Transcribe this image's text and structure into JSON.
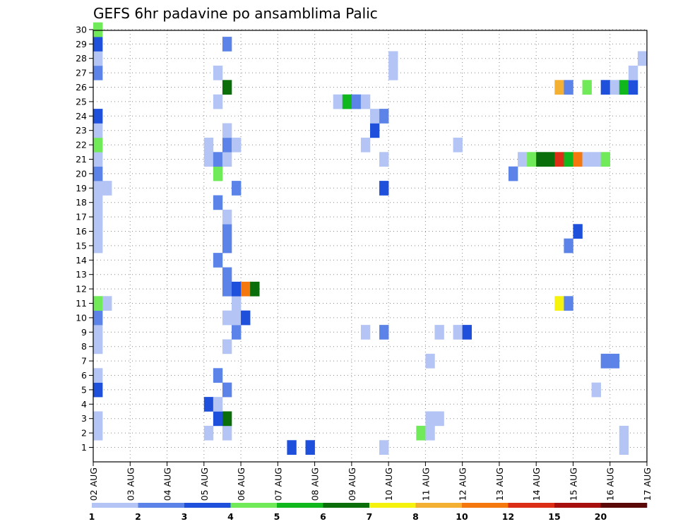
{
  "chart_data": {
    "type": "heatmap",
    "title": "GEFS 6hr padavine po ansamblima Palic",
    "xlabel": "",
    "ylabel": "",
    "x_ticks": [
      "02 AUG",
      "03 AUG",
      "04 AUG",
      "05 AUG",
      "06 AUG",
      "07 AUG",
      "08 AUG",
      "09 AUG",
      "10 AUG",
      "11 AUG",
      "12 AUG",
      "13 AUG",
      "14 AUG",
      "15 AUG",
      "16 AUG",
      "17 AUG"
    ],
    "x_range_days": [
      0,
      15
    ],
    "x_step_hours": 6,
    "y_members": [
      1,
      2,
      3,
      4,
      5,
      6,
      7,
      8,
      9,
      10,
      11,
      12,
      13,
      14,
      15,
      16,
      17,
      18,
      19,
      20,
      21,
      22,
      23,
      24,
      25,
      26,
      27,
      28,
      29,
      30
    ],
    "grid": "dotted",
    "legend": {
      "position": "bottom",
      "bounds": [
        1,
        2,
        3,
        4,
        5,
        6,
        7,
        8,
        10,
        12,
        15,
        20
      ],
      "colors": [
        "#b4c5f5",
        "#5c84e8",
        "#1e50dc",
        "#70ea58",
        "#10b81e",
        "#0a6e0a",
        "#f5f20e",
        "#f4b033",
        "#f4780e",
        "#dc2e16",
        "#a81010",
        "#5a0808"
      ]
    },
    "cells": [
      {
        "member": 1,
        "day": 5.25,
        "level": 3
      },
      {
        "member": 1,
        "day": 5.75,
        "level": 3
      },
      {
        "member": 1,
        "day": 7.75,
        "level": 1
      },
      {
        "member": 1,
        "day": 14.25,
        "level": 1
      },
      {
        "member": 2,
        "day": 0.0,
        "level": 1
      },
      {
        "member": 2,
        "day": 3.0,
        "level": 1
      },
      {
        "member": 2,
        "day": 3.5,
        "level": 1
      },
      {
        "member": 2,
        "day": 8.75,
        "level": 4
      },
      {
        "member": 2,
        "day": 9.0,
        "level": 1
      },
      {
        "member": 2,
        "day": 14.25,
        "level": 1
      },
      {
        "member": 3,
        "day": 0.0,
        "level": 1
      },
      {
        "member": 3,
        "day": 3.25,
        "level": 3
      },
      {
        "member": 3,
        "day": 3.5,
        "level": 6
      },
      {
        "member": 3,
        "day": 9.0,
        "level": 1
      },
      {
        "member": 3,
        "day": 9.25,
        "level": 1
      },
      {
        "member": 4,
        "day": 3.0,
        "level": 3
      },
      {
        "member": 4,
        "day": 3.25,
        "level": 1
      },
      {
        "member": 5,
        "day": 0.0,
        "level": 3
      },
      {
        "member": 5,
        "day": 3.5,
        "level": 2
      },
      {
        "member": 5,
        "day": 13.5,
        "level": 1
      },
      {
        "member": 6,
        "day": 0.0,
        "level": 1
      },
      {
        "member": 6,
        "day": 3.25,
        "level": 2
      },
      {
        "member": 7,
        "day": 9.0,
        "level": 1
      },
      {
        "member": 7,
        "day": 13.75,
        "level": 2
      },
      {
        "member": 7,
        "day": 14.0,
        "level": 2
      },
      {
        "member": 8,
        "day": 0.0,
        "level": 1
      },
      {
        "member": 8,
        "day": 3.5,
        "level": 1
      },
      {
        "member": 9,
        "day": 0.0,
        "level": 1
      },
      {
        "member": 9,
        "day": 3.75,
        "level": 2
      },
      {
        "member": 9,
        "day": 7.25,
        "level": 1
      },
      {
        "member": 9,
        "day": 7.75,
        "level": 2
      },
      {
        "member": 9,
        "day": 9.25,
        "level": 1
      },
      {
        "member": 9,
        "day": 9.75,
        "level": 1
      },
      {
        "member": 9,
        "day": 10.0,
        "level": 3
      },
      {
        "member": 10,
        "day": 0.0,
        "level": 2
      },
      {
        "member": 10,
        "day": 3.5,
        "level": 1
      },
      {
        "member": 10,
        "day": 3.75,
        "level": 1
      },
      {
        "member": 10,
        "day": 4.0,
        "level": 3
      },
      {
        "member": 11,
        "day": 0.0,
        "level": 4
      },
      {
        "member": 11,
        "day": 0.25,
        "level": 1
      },
      {
        "member": 11,
        "day": 3.75,
        "level": 1
      },
      {
        "member": 11,
        "day": 12.5,
        "level": 7
      },
      {
        "member": 11,
        "day": 12.75,
        "level": 2
      },
      {
        "member": 12,
        "day": 3.5,
        "level": 2
      },
      {
        "member": 12,
        "day": 3.75,
        "level": 3
      },
      {
        "member": 12,
        "day": 4.0,
        "level": 9
      },
      {
        "member": 12,
        "day": 4.25,
        "level": 6
      },
      {
        "member": 13,
        "day": 3.5,
        "level": 2
      },
      {
        "member": 14,
        "day": 3.25,
        "level": 2
      },
      {
        "member": 15,
        "day": 0.0,
        "level": 1
      },
      {
        "member": 15,
        "day": 3.5,
        "level": 2
      },
      {
        "member": 15,
        "day": 12.75,
        "level": 2
      },
      {
        "member": 16,
        "day": 0.0,
        "level": 1
      },
      {
        "member": 16,
        "day": 3.5,
        "level": 2
      },
      {
        "member": 16,
        "day": 13.0,
        "level": 3
      },
      {
        "member": 17,
        "day": 0.0,
        "level": 1
      },
      {
        "member": 17,
        "day": 3.5,
        "level": 1
      },
      {
        "member": 18,
        "day": 0.0,
        "level": 1
      },
      {
        "member": 18,
        "day": 3.25,
        "level": 2
      },
      {
        "member": 19,
        "day": 0.0,
        "level": 1
      },
      {
        "member": 19,
        "day": 0.25,
        "level": 1
      },
      {
        "member": 19,
        "day": 3.75,
        "level": 2
      },
      {
        "member": 19,
        "day": 7.75,
        "level": 3
      },
      {
        "member": 20,
        "day": 0.0,
        "level": 2
      },
      {
        "member": 20,
        "day": 3.25,
        "level": 4
      },
      {
        "member": 20,
        "day": 11.25,
        "level": 2
      },
      {
        "member": 21,
        "day": 0.0,
        "level": 1
      },
      {
        "member": 21,
        "day": 3.0,
        "level": 1
      },
      {
        "member": 21,
        "day": 3.25,
        "level": 2
      },
      {
        "member": 21,
        "day": 3.5,
        "level": 1
      },
      {
        "member": 21,
        "day": 7.75,
        "level": 1
      },
      {
        "member": 21,
        "day": 11.5,
        "level": 1
      },
      {
        "member": 21,
        "day": 11.75,
        "level": 4
      },
      {
        "member": 21,
        "day": 12.0,
        "level": 6
      },
      {
        "member": 21,
        "day": 12.25,
        "level": 6
      },
      {
        "member": 21,
        "day": 12.5,
        "level": 10
      },
      {
        "member": 21,
        "day": 12.75,
        "level": 5
      },
      {
        "member": 21,
        "day": 13.0,
        "level": 9
      },
      {
        "member": 21,
        "day": 13.25,
        "level": 1
      },
      {
        "member": 21,
        "day": 13.5,
        "level": 1
      },
      {
        "member": 21,
        "day": 13.75,
        "level": 4
      },
      {
        "member": 22,
        "day": 0.0,
        "level": 4
      },
      {
        "member": 22,
        "day": 3.0,
        "level": 1
      },
      {
        "member": 22,
        "day": 3.5,
        "level": 2
      },
      {
        "member": 22,
        "day": 3.75,
        "level": 1
      },
      {
        "member": 22,
        "day": 7.25,
        "level": 1
      },
      {
        "member": 22,
        "day": 9.75,
        "level": 1
      },
      {
        "member": 23,
        "day": 0.0,
        "level": 1
      },
      {
        "member": 23,
        "day": 3.5,
        "level": 1
      },
      {
        "member": 23,
        "day": 7.5,
        "level": 3
      },
      {
        "member": 24,
        "day": 0.0,
        "level": 3
      },
      {
        "member": 24,
        "day": 7.5,
        "level": 1
      },
      {
        "member": 24,
        "day": 7.75,
        "level": 2
      },
      {
        "member": 25,
        "day": 3.25,
        "level": 1
      },
      {
        "member": 25,
        "day": 6.5,
        "level": 1
      },
      {
        "member": 25,
        "day": 6.75,
        "level": 5
      },
      {
        "member": 25,
        "day": 7.0,
        "level": 2
      },
      {
        "member": 25,
        "day": 7.25,
        "level": 1
      },
      {
        "member": 26,
        "day": 3.5,
        "level": 6
      },
      {
        "member": 26,
        "day": 12.5,
        "level": 8
      },
      {
        "member": 26,
        "day": 12.75,
        "level": 2
      },
      {
        "member": 26,
        "day": 13.25,
        "level": 4
      },
      {
        "member": 26,
        "day": 13.75,
        "level": 3
      },
      {
        "member": 26,
        "day": 14.0,
        "level": 1
      },
      {
        "member": 26,
        "day": 14.25,
        "level": 5
      },
      {
        "member": 26,
        "day": 14.5,
        "level": 3
      },
      {
        "member": 27,
        "day": 0.0,
        "level": 2
      },
      {
        "member": 27,
        "day": 3.25,
        "level": 1
      },
      {
        "member": 27,
        "day": 8.0,
        "level": 1
      },
      {
        "member": 27,
        "day": 14.5,
        "level": 1
      },
      {
        "member": 28,
        "day": 0.0,
        "level": 1
      },
      {
        "member": 28,
        "day": 8.0,
        "level": 1
      },
      {
        "member": 28,
        "day": 14.75,
        "level": 1
      },
      {
        "member": 29,
        "day": 0.0,
        "level": 3
      },
      {
        "member": 29,
        "day": 3.5,
        "level": 2
      },
      {
        "member": 30,
        "day": 0.0,
        "level": 4
      }
    ]
  }
}
